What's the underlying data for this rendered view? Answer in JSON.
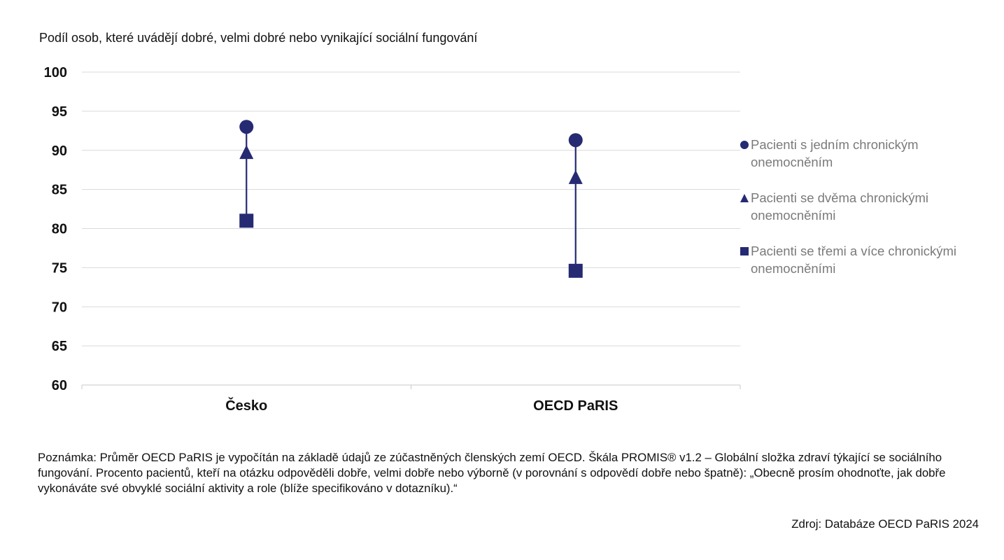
{
  "chart_data": {
    "type": "scatter",
    "title": "Podíl osob, které uvádějí dobré, velmi dobré nebo vynikající sociální fungování",
    "categories": [
      "Česko",
      "OECD PaRIS"
    ],
    "ylim": [
      60,
      100
    ],
    "yticks": [
      60,
      65,
      70,
      75,
      80,
      85,
      90,
      95,
      100
    ],
    "grid": true,
    "legend_position": "right",
    "series": [
      {
        "name": "Pacienti s jedním chronickým onemocněním",
        "marker": "circle",
        "values": [
          93.0,
          91.3
        ]
      },
      {
        "name": "Pacienti se dvěma chronickými onemocněními",
        "marker": "triangle",
        "values": [
          89.7,
          86.5
        ]
      },
      {
        "name": "Pacienti se třemi a více chronickými onemocněními",
        "marker": "square",
        "values": [
          81.0,
          74.6
        ]
      }
    ],
    "colors": {
      "series": "#252a73",
      "grid": "#d9d9d9",
      "legend_text": "#7a7a7a"
    }
  },
  "note": "Poznámka: Průměr OECD PaRIS je vypočítán na základě údajů ze zúčastněných členských zemí OECD. Škála PROMIS® v1.2 – Globální složka zdraví týkající se sociálního fungování. Procento pacientů, kteří na otázku odpověděli dobře, velmi dobře nebo výborně (v porovnání s odpovědí dobře nebo špatně): „Obecně prosím ohodnoťte, jak dobře vykonáváte své obvyklé sociální aktivity a role (blíže specifikováno v dotazníku).“",
  "source": "Zdroj: Databáze OECD PaRIS 2024"
}
